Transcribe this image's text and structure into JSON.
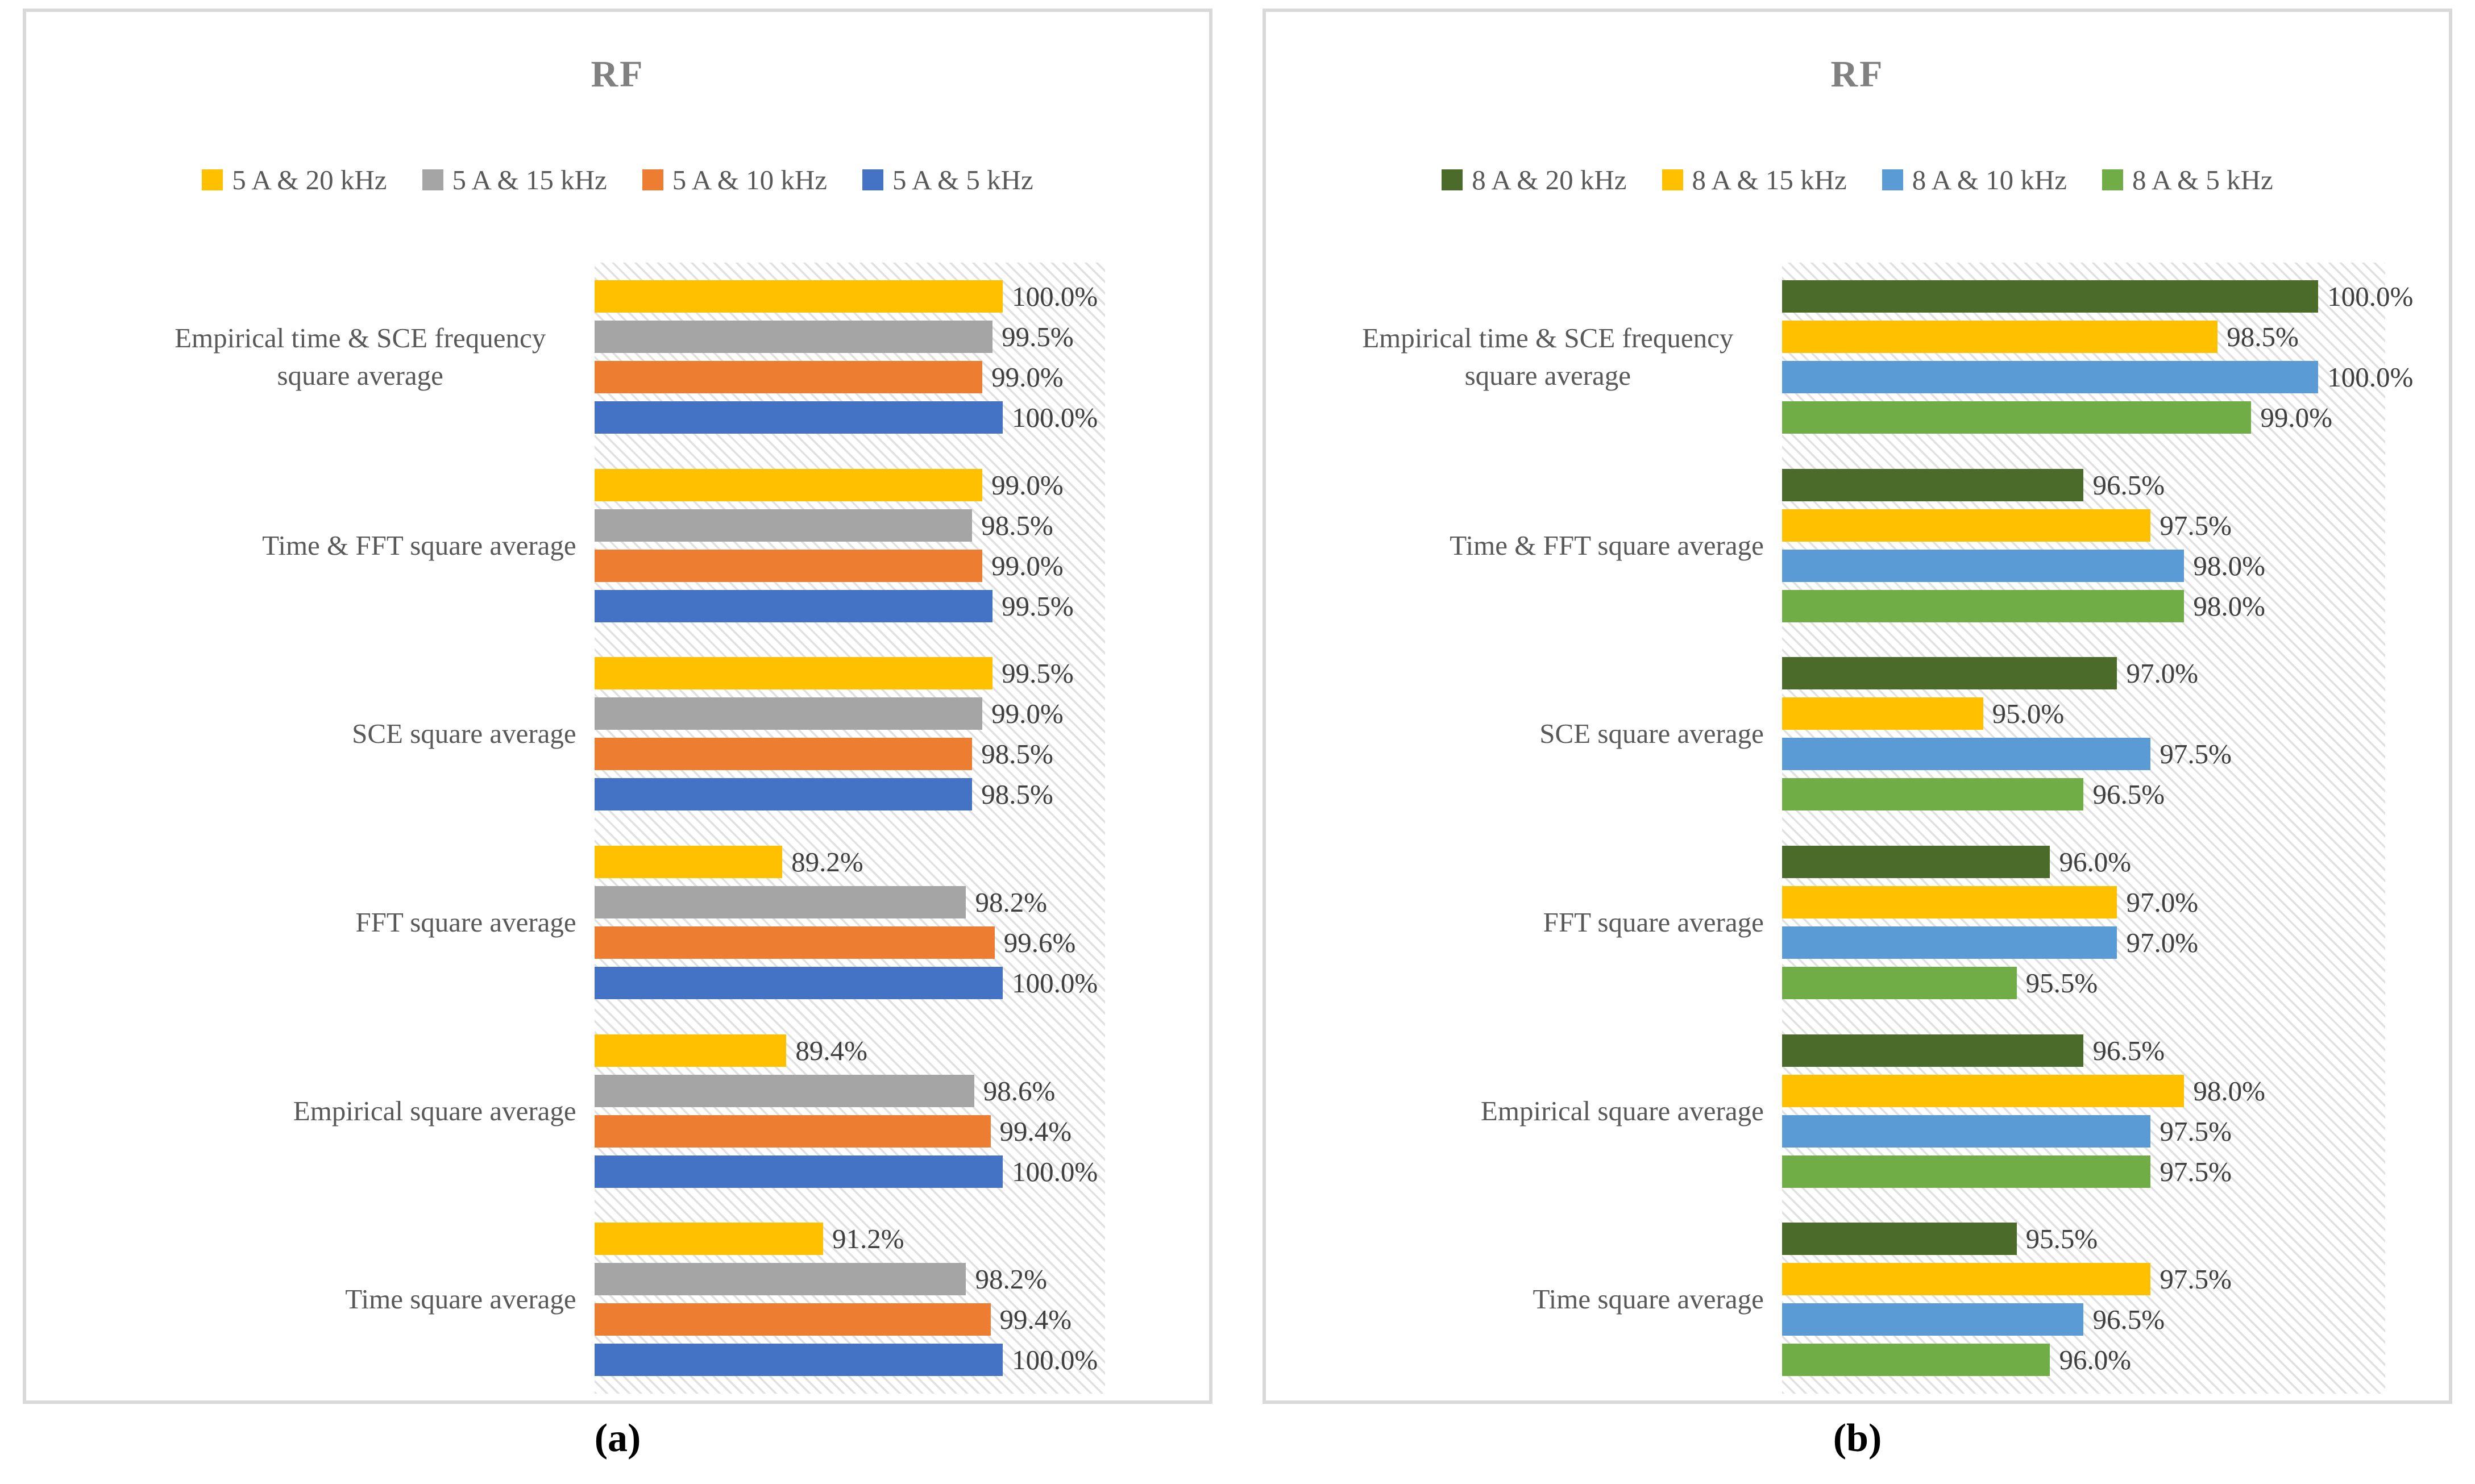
{
  "chart_data": [
    {
      "id": "a",
      "type": "bar",
      "orientation": "horizontal",
      "title": "RF",
      "caption": "(a)",
      "legend_position": "top",
      "plot_background": "light-diagonal-hatch",
      "axis": {
        "min": 80,
        "max": 105,
        "gridlines": false,
        "tick_labels_visible": false
      },
      "series": [
        {
          "name": "5 A & 20 kHz",
          "color": "#FFC000"
        },
        {
          "name": "5 A & 15 kHz",
          "color": "#A5A5A5"
        },
        {
          "name": "5 A & 10 kHz",
          "color": "#ED7D31"
        },
        {
          "name": "5 A & 5 kHz",
          "color": "#4472C4"
        }
      ],
      "categories": [
        "Empirical time & SCE frequency square average",
        "Time & FFT square average",
        "SCE square average",
        "FFT square average",
        "Empirical square average",
        "Time square average"
      ],
      "values": [
        [
          100.0,
          99.5,
          99.0,
          100.0
        ],
        [
          99.0,
          98.5,
          99.0,
          99.5
        ],
        [
          99.5,
          99.0,
          98.5,
          98.5
        ],
        [
          89.2,
          98.2,
          99.6,
          100.0
        ],
        [
          89.4,
          98.6,
          99.4,
          100.0
        ],
        [
          91.2,
          98.2,
          99.4,
          100.0
        ]
      ],
      "value_labels": [
        [
          "100.0%",
          "99.5%",
          "99.0%",
          "100.0%"
        ],
        [
          "99.0%",
          "98.5%",
          "99.0%",
          "99.5%"
        ],
        [
          "99.5%",
          "99.0%",
          "98.5%",
          "98.5%"
        ],
        [
          "89.2%",
          "98.2%",
          "99.6%",
          "100.0%"
        ],
        [
          "89.4%",
          "98.6%",
          "99.4%",
          "100.0%"
        ],
        [
          "91.2%",
          "98.2%",
          "99.4%",
          "100.0%"
        ]
      ]
    },
    {
      "id": "b",
      "type": "bar",
      "orientation": "horizontal",
      "title": "RF",
      "caption": "(b)",
      "legend_position": "top",
      "plot_background": "light-diagonal-hatch",
      "axis": {
        "min": 92,
        "max": 101,
        "gridlines": false,
        "tick_labels_visible": false
      },
      "series": [
        {
          "name": "8 A & 20 kHz",
          "color": "#4A6B2A"
        },
        {
          "name": "8 A & 15 kHz",
          "color": "#FFC000"
        },
        {
          "name": "8 A & 10 kHz",
          "color": "#5B9BD5"
        },
        {
          "name": "8 A & 5 kHz",
          "color": "#70AD47"
        }
      ],
      "categories": [
        "Empirical time & SCE frequency square average",
        "Time & FFT square average",
        "SCE square average",
        "FFT square average",
        "Empirical square average",
        "Time square average"
      ],
      "values": [
        [
          100.0,
          98.5,
          100.0,
          99.0
        ],
        [
          96.5,
          97.5,
          98.0,
          98.0
        ],
        [
          97.0,
          95.0,
          97.5,
          96.5
        ],
        [
          96.0,
          97.0,
          97.0,
          95.5
        ],
        [
          96.5,
          98.0,
          97.5,
          97.5
        ],
        [
          95.5,
          97.5,
          96.5,
          96.0
        ]
      ],
      "value_labels": [
        [
          "100.0%",
          "98.5%",
          "100.0%",
          "99.0%"
        ],
        [
          "96.5%",
          "97.5%",
          "98.0%",
          "98.0%"
        ],
        [
          "97.0%",
          "95.0%",
          "97.5%",
          "96.5%"
        ],
        [
          "96.0%",
          "97.0%",
          "97.0%",
          "95.5%"
        ],
        [
          "96.5%",
          "98.0%",
          "97.5%",
          "97.5%"
        ],
        [
          "95.5%",
          "97.5%",
          "96.5%",
          "96.0%"
        ]
      ]
    }
  ],
  "figure": {
    "captions": {
      "a": "(a)",
      "b": "(b)"
    }
  }
}
